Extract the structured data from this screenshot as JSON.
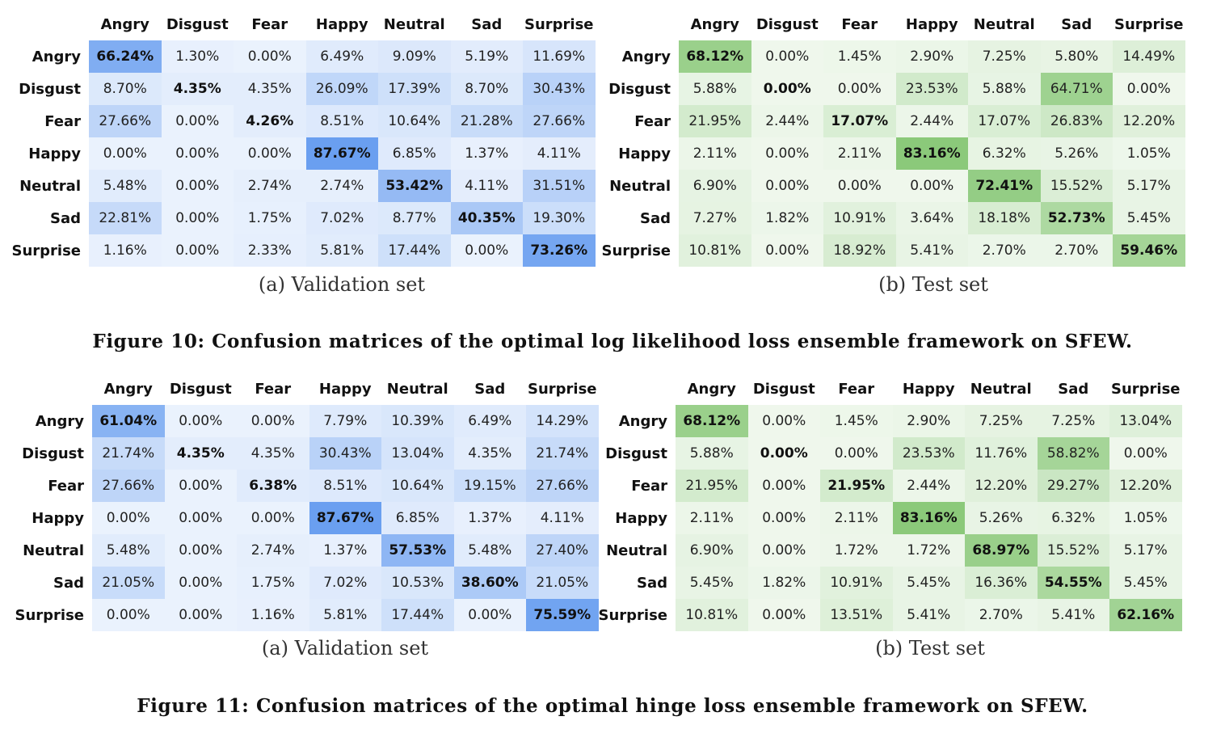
{
  "colors": {
    "blue": "#6a9ff0",
    "green": "#8bc97a",
    "empty": "#ffffff"
  },
  "chart_data": [
    {
      "type": "heatmap",
      "subcaption": "(a) Validation set",
      "columns": [
        "Angry",
        "Disgust",
        "Fear",
        "Happy",
        "Neutral",
        "Sad",
        "Surprise"
      ],
      "rows": [
        "Angry",
        "Disgust",
        "Fear",
        "Happy",
        "Neutral",
        "Sad",
        "Surprise"
      ],
      "values": [
        [
          "66.24%",
          "1.30%",
          "0.00%",
          "6.49%",
          "9.09%",
          "5.19%",
          "11.69%"
        ],
        [
          "8.70%",
          "4.35%",
          "4.35%",
          "26.09%",
          "17.39%",
          "8.70%",
          "30.43%"
        ],
        [
          "27.66%",
          "0.00%",
          "4.26%",
          "8.51%",
          "10.64%",
          "21.28%",
          "27.66%"
        ],
        [
          "0.00%",
          "0.00%",
          "0.00%",
          "87.67%",
          "6.85%",
          "1.37%",
          "4.11%"
        ],
        [
          "5.48%",
          "0.00%",
          "2.74%",
          "2.74%",
          "53.42%",
          "4.11%",
          "31.51%"
        ],
        [
          "22.81%",
          "0.00%",
          "1.75%",
          "7.02%",
          "8.77%",
          "40.35%",
          "19.30%"
        ],
        [
          "1.16%",
          "0.00%",
          "2.33%",
          "5.81%",
          "17.44%",
          "0.00%",
          "73.26%"
        ]
      ]
    },
    {
      "type": "heatmap",
      "subcaption": "(b) Test set",
      "columns": [
        "Angry",
        "Disgust",
        "Fear",
        "Happy",
        "Neutral",
        "Sad",
        "Surprise"
      ],
      "rows": [
        "Angry",
        "Disgust",
        "Fear",
        "Happy",
        "Neutral",
        "Sad",
        "Surprise"
      ],
      "values": [
        [
          "68.12%",
          "0.00%",
          "1.45%",
          "2.90%",
          "7.25%",
          "5.80%",
          "14.49%"
        ],
        [
          "5.88%",
          "0.00%",
          "0.00%",
          "23.53%",
          "5.88%",
          "64.71%",
          "0.00%"
        ],
        [
          "21.95%",
          "2.44%",
          "17.07%",
          "2.44%",
          "17.07%",
          "26.83%",
          "12.20%"
        ],
        [
          "2.11%",
          "0.00%",
          "2.11%",
          "83.16%",
          "6.32%",
          "5.26%",
          "1.05%"
        ],
        [
          "6.90%",
          "0.00%",
          "0.00%",
          "0.00%",
          "72.41%",
          "15.52%",
          "5.17%"
        ],
        [
          "7.27%",
          "1.82%",
          "10.91%",
          "3.64%",
          "18.18%",
          "52.73%",
          "5.45%"
        ],
        [
          "10.81%",
          "0.00%",
          "18.92%",
          "5.41%",
          "2.70%",
          "2.70%",
          "59.46%"
        ]
      ]
    },
    {
      "type": "heatmap",
      "subcaption": "(a) Validation set",
      "columns": [
        "Angry",
        "Disgust",
        "Fear",
        "Happy",
        "Neutral",
        "Sad",
        "Surprise"
      ],
      "rows": [
        "Angry",
        "Disgust",
        "Fear",
        "Happy",
        "Neutral",
        "Sad",
        "Surprise"
      ],
      "values": [
        [
          "61.04%",
          "0.00%",
          "0.00%",
          "7.79%",
          "10.39%",
          "6.49%",
          "14.29%"
        ],
        [
          "21.74%",
          "4.35%",
          "4.35%",
          "30.43%",
          "13.04%",
          "4.35%",
          "21.74%"
        ],
        [
          "27.66%",
          "0.00%",
          "6.38%",
          "8.51%",
          "10.64%",
          "19.15%",
          "27.66%"
        ],
        [
          "0.00%",
          "0.00%",
          "0.00%",
          "87.67%",
          "6.85%",
          "1.37%",
          "4.11%"
        ],
        [
          "5.48%",
          "0.00%",
          "2.74%",
          "1.37%",
          "57.53%",
          "5.48%",
          "27.40%"
        ],
        [
          "21.05%",
          "0.00%",
          "1.75%",
          "7.02%",
          "10.53%",
          "38.60%",
          "21.05%"
        ],
        [
          "0.00%",
          "0.00%",
          "1.16%",
          "5.81%",
          "17.44%",
          "0.00%",
          "75.59%"
        ]
      ]
    },
    {
      "type": "heatmap",
      "subcaption": "(b) Test set",
      "columns": [
        "Angry",
        "Disgust",
        "Fear",
        "Happy",
        "Neutral",
        "Sad",
        "Surprise"
      ],
      "rows": [
        "Angry",
        "Disgust",
        "Fear",
        "Happy",
        "Neutral",
        "Sad",
        "Surprise"
      ],
      "values": [
        [
          "68.12%",
          "0.00%",
          "1.45%",
          "2.90%",
          "7.25%",
          "7.25%",
          "13.04%"
        ],
        [
          "5.88%",
          "0.00%",
          "0.00%",
          "23.53%",
          "11.76%",
          "58.82%",
          "0.00%"
        ],
        [
          "21.95%",
          "0.00%",
          "21.95%",
          "2.44%",
          "12.20%",
          "29.27%",
          "12.20%"
        ],
        [
          "2.11%",
          "0.00%",
          "2.11%",
          "83.16%",
          "5.26%",
          "6.32%",
          "1.05%"
        ],
        [
          "6.90%",
          "0.00%",
          "1.72%",
          "1.72%",
          "68.97%",
          "15.52%",
          "5.17%"
        ],
        [
          "5.45%",
          "1.82%",
          "10.91%",
          "5.45%",
          "16.36%",
          "54.55%",
          "5.45%"
        ],
        [
          "10.81%",
          "0.00%",
          "13.51%",
          "5.41%",
          "2.70%",
          "5.41%",
          "62.16%"
        ]
      ]
    }
  ],
  "figure10_caption": "Figure 10: Confusion matrices of the optimal log likelihood loss ensemble framework on SFEW.",
  "figure11_caption": "Figure 11: Confusion matrices of the optimal hinge loss ensemble framework on SFEW."
}
